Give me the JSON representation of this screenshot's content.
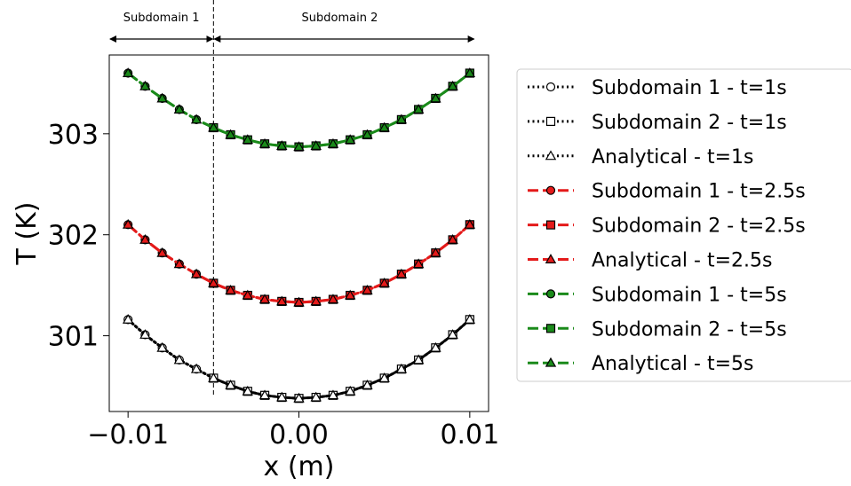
{
  "chart_data": {
    "type": "line",
    "title": "",
    "xlabel": "x (m)",
    "ylabel": "T (K)",
    "xlim": [
      -0.0111,
      0.0111
    ],
    "ylim": [
      300.25,
      303.78
    ],
    "xticks": [
      -0.01,
      0.0,
      0.01
    ],
    "xtick_labels": [
      "−0.01",
      "0.00",
      "0.01"
    ],
    "yticks": [
      301,
      302,
      303
    ],
    "ytick_labels": [
      "301",
      "302",
      "303"
    ],
    "grid": false,
    "legend_position": "outside-right",
    "interface_x": -0.005,
    "annotations": [
      {
        "text": "Subdomain 1",
        "x_from": -0.0111,
        "x_to": -0.005
      },
      {
        "text": "Subdomain 2",
        "x_from": -0.005,
        "x_to": 0.0103
      }
    ],
    "series": [
      {
        "name": "Subdomain 1 - t=1s",
        "color": "#000000",
        "linestyle": "dotted",
        "marker": "circle",
        "fill": "#ffffff",
        "x": [
          -0.01,
          -0.009,
          -0.008,
          -0.007,
          -0.006,
          -0.005
        ],
        "y": [
          301.16,
          301.01,
          300.88,
          300.76,
          300.67,
          300.58
        ]
      },
      {
        "name": "Subdomain 2 - t=1s",
        "color": "#000000",
        "linestyle": "dotted",
        "marker": "square",
        "fill": "#ffffff",
        "x": [
          -0.005,
          -0.004,
          -0.003,
          -0.002,
          -0.001,
          0.0,
          0.001,
          0.002,
          0.003,
          0.004,
          0.005,
          0.006,
          0.007,
          0.008,
          0.009,
          0.01
        ],
        "y": [
          300.58,
          300.51,
          300.45,
          300.41,
          300.39,
          300.38,
          300.39,
          300.41,
          300.45,
          300.51,
          300.58,
          300.67,
          300.76,
          300.88,
          301.01,
          301.16
        ]
      },
      {
        "name": "Analytical - t=1s",
        "color": "#000000",
        "linestyle": "dotted",
        "marker": "triangle",
        "fill": "#ffffff",
        "x": [
          -0.01,
          -0.009,
          -0.008,
          -0.007,
          -0.006,
          -0.005,
          -0.004,
          -0.003,
          -0.002,
          -0.001,
          0.0,
          0.001,
          0.002,
          0.003,
          0.004,
          0.005,
          0.006,
          0.007,
          0.008,
          0.009,
          0.01
        ],
        "y": [
          301.16,
          301.01,
          300.88,
          300.76,
          300.67,
          300.58,
          300.51,
          300.45,
          300.41,
          300.39,
          300.38,
          300.39,
          300.41,
          300.45,
          300.51,
          300.58,
          300.67,
          300.76,
          300.88,
          301.01,
          301.16
        ]
      },
      {
        "name": "Subdomain 1 - t=2.5s",
        "color": "#e41a1a",
        "linestyle": "dashed",
        "marker": "circle",
        "fill": "#e41a1a",
        "x": [
          -0.01,
          -0.009,
          -0.008,
          -0.007,
          -0.006,
          -0.005
        ],
        "y": [
          302.1,
          301.95,
          301.82,
          301.71,
          301.61,
          301.52
        ]
      },
      {
        "name": "Subdomain 2 - t=2.5s",
        "color": "#e41a1a",
        "linestyle": "dashed",
        "marker": "square",
        "fill": "#e41a1a",
        "x": [
          -0.005,
          -0.004,
          -0.003,
          -0.002,
          -0.001,
          0.0,
          0.001,
          0.002,
          0.003,
          0.004,
          0.005,
          0.006,
          0.007,
          0.008,
          0.009,
          0.01
        ],
        "y": [
          301.52,
          301.45,
          301.4,
          301.36,
          301.34,
          301.33,
          301.34,
          301.36,
          301.4,
          301.45,
          301.52,
          301.61,
          301.71,
          301.82,
          301.95,
          302.1
        ]
      },
      {
        "name": "Analytical - t=2.5s",
        "color": "#e41a1a",
        "linestyle": "dashed",
        "marker": "triangle",
        "fill": "#e41a1a",
        "x": [
          -0.01,
          -0.009,
          -0.008,
          -0.007,
          -0.006,
          -0.005,
          -0.004,
          -0.003,
          -0.002,
          -0.001,
          0.0,
          0.001,
          0.002,
          0.003,
          0.004,
          0.005,
          0.006,
          0.007,
          0.008,
          0.009,
          0.01
        ],
        "y": [
          302.1,
          301.95,
          301.82,
          301.71,
          301.61,
          301.52,
          301.45,
          301.4,
          301.36,
          301.34,
          301.33,
          301.34,
          301.36,
          301.4,
          301.45,
          301.52,
          301.61,
          301.71,
          301.82,
          301.95,
          302.1
        ]
      },
      {
        "name": "Subdomain 1 - t=5s",
        "color": "#1a8a1a",
        "linestyle": "dashed",
        "marker": "circle",
        "fill": "#1a8a1a",
        "x": [
          -0.01,
          -0.009,
          -0.008,
          -0.007,
          -0.006,
          -0.005
        ],
        "y": [
          303.6,
          303.47,
          303.35,
          303.24,
          303.14,
          303.06
        ]
      },
      {
        "name": "Subdomain 2 - t=5s",
        "color": "#1a8a1a",
        "linestyle": "dashed",
        "marker": "square",
        "fill": "#1a8a1a",
        "x": [
          -0.005,
          -0.004,
          -0.003,
          -0.002,
          -0.001,
          0.0,
          0.001,
          0.002,
          0.003,
          0.004,
          0.005,
          0.006,
          0.007,
          0.008,
          0.009,
          0.01
        ],
        "y": [
          303.06,
          302.99,
          302.94,
          302.9,
          302.88,
          302.87,
          302.88,
          302.9,
          302.94,
          302.99,
          303.06,
          303.14,
          303.24,
          303.35,
          303.47,
          303.6
        ]
      },
      {
        "name": "Analytical - t=5s",
        "color": "#1a8a1a",
        "linestyle": "dashed",
        "marker": "triangle",
        "fill": "#1a8a1a",
        "x": [
          -0.01,
          -0.009,
          -0.008,
          -0.007,
          -0.006,
          -0.005,
          -0.004,
          -0.003,
          -0.002,
          -0.001,
          0.0,
          0.001,
          0.002,
          0.003,
          0.004,
          0.005,
          0.006,
          0.007,
          0.008,
          0.009,
          0.01
        ],
        "y": [
          303.6,
          303.47,
          303.35,
          303.24,
          303.14,
          303.06,
          302.99,
          302.94,
          302.9,
          302.88,
          302.87,
          302.88,
          302.9,
          302.94,
          302.99,
          303.06,
          303.14,
          303.24,
          303.35,
          303.47,
          303.6
        ]
      }
    ]
  }
}
